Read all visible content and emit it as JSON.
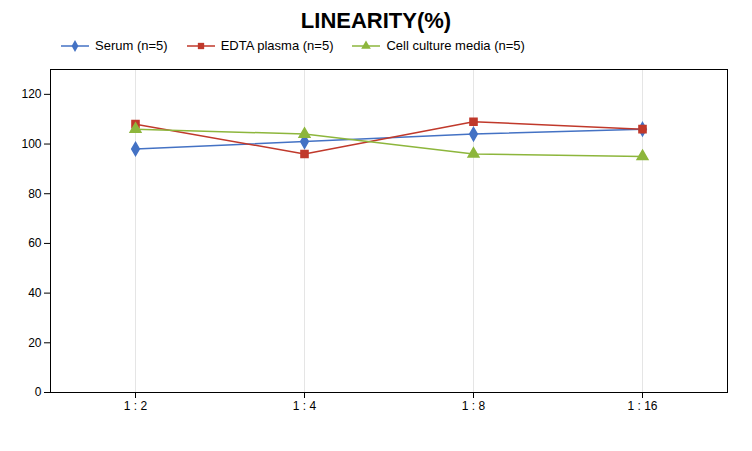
{
  "chart_data": {
    "type": "line",
    "title": "LINEARITY(%)",
    "categories": [
      "1 : 2",
      "1 : 4",
      "1 : 8",
      "1 : 16"
    ],
    "series": [
      {
        "name": "Serum (n=5)",
        "color": "#4472c4",
        "marker": "diamond",
        "values": [
          98,
          101,
          104,
          106
        ]
      },
      {
        "name": "EDTA plasma (n=5)",
        "color": "#c0392b",
        "marker": "square",
        "values": [
          108,
          96,
          109,
          106
        ]
      },
      {
        "name": "Cell culture media (n=5)",
        "color": "#8db63c",
        "marker": "triangle",
        "values": [
          106,
          104,
          96,
          95
        ]
      }
    ],
    "ylim": [
      0,
      130
    ],
    "yticks": [
      0,
      20,
      40,
      60,
      80,
      100,
      120
    ],
    "grid": true,
    "legend": "top"
  }
}
